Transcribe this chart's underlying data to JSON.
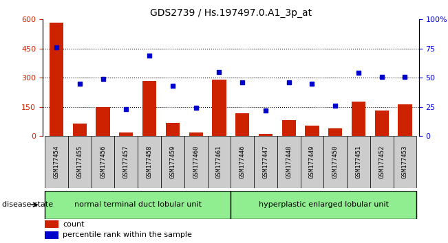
{
  "title": "GDS2739 / Hs.197497.0.A1_3p_at",
  "samples": [
    "GSM177454",
    "GSM177455",
    "GSM177456",
    "GSM177457",
    "GSM177458",
    "GSM177459",
    "GSM177460",
    "GSM177461",
    "GSM177446",
    "GSM177447",
    "GSM177448",
    "GSM177449",
    "GSM177450",
    "GSM177451",
    "GSM177452",
    "GSM177453"
  ],
  "counts": [
    585,
    65,
    148,
    18,
    285,
    68,
    20,
    290,
    118,
    10,
    82,
    55,
    40,
    178,
    133,
    163
  ],
  "percentiles": [
    76,
    45,
    49,
    23,
    69,
    43,
    24,
    55,
    46,
    22,
    46,
    45,
    26,
    54,
    51,
    51
  ],
  "group1_label": "normal terminal duct lobular unit",
  "group2_label": "hyperplastic enlarged lobular unit",
  "group1_count": 8,
  "group2_count": 8,
  "bar_color": "#cc2200",
  "dot_color": "#0000cc",
  "ylim_left": [
    0,
    600
  ],
  "ylim_right": [
    0,
    100
  ],
  "yticks_left": [
    0,
    150,
    300,
    450,
    600
  ],
  "yticks_right": [
    0,
    25,
    50,
    75,
    100
  ],
  "ytick_labels_right": [
    "0",
    "25",
    "50",
    "75",
    "100%"
  ],
  "grid_vals": [
    150,
    300,
    450
  ],
  "sample_bg_color": "#cccccc",
  "group_bg": "#90ee90",
  "disease_state_label": "disease state",
  "legend_count_label": "count",
  "legend_pct_label": "percentile rank within the sample"
}
